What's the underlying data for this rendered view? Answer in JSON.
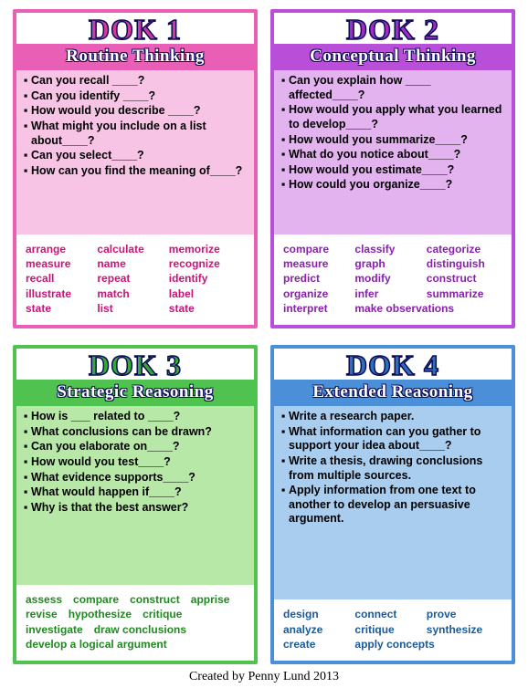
{
  "footer": "Created by Penny Lund 2013",
  "cards": [
    {
      "title": "DOK 1",
      "subtitle": "Routine Thinking",
      "border_color": "#e85fb5",
      "title_color": "#d13a9a",
      "band_color": "#e85fb5",
      "body_color": "#f7c4e6",
      "verb_color": "#c9147a",
      "questions": [
        "Can you recall ____?",
        "Can you identify ____?",
        "How would you describe ____?",
        "What might you include on a list about____?",
        "Can you select____?",
        "How can you find the meaning of____?"
      ],
      "verbs": [
        "arrange",
        "calculate",
        "memorize",
        "measure",
        "name",
        "recognize",
        "recall",
        "repeat",
        "identify",
        "illustrate",
        "match",
        "label",
        "state",
        "list",
        "state"
      ],
      "verb_layout": "cols3"
    },
    {
      "title": "DOK 2",
      "subtitle": "Conceptual Thinking",
      "border_color": "#b94ed8",
      "title_color": "#a22dc2",
      "band_color": "#b94ed8",
      "body_color": "#e3b3ef",
      "verb_color": "#8a1fb0",
      "questions": [
        "Can you explain how ____ affected____?",
        "How would you apply what you learned to develop____?",
        "How would you summarize____?",
        "What do you notice about____?",
        "How would you estimate____?",
        "How could you organize____?"
      ],
      "verbs": [
        "compare",
        "classify",
        "categorize",
        "measure",
        "graph",
        "distinguish",
        "predict",
        "modify",
        "construct",
        "organize",
        "infer",
        "summarize",
        "interpret",
        "make observations"
      ],
      "verb_layout": "cols3"
    },
    {
      "title": "DOK 3",
      "subtitle": "Strategic Reasoning",
      "border_color": "#4fc24f",
      "title_color": "#35a835",
      "band_color": "#4fc24f",
      "body_color": "#b8e8a8",
      "verb_color": "#1f8a1f",
      "questions": [
        "How is ___ related to ____?",
        "What conclusions can be drawn?",
        "Can you elaborate on____?",
        "How would you test____?",
        "What evidence supports____?",
        "What would happen if____?",
        "Why is that the best answer?"
      ],
      "verbs": [
        "assess",
        "compare",
        "construct",
        "apprise",
        "revise",
        "hypothesize",
        "critique",
        "investigate",
        "draw conclusions",
        "develop a logical argument"
      ],
      "verb_layout": "free"
    },
    {
      "title": "DOK 4",
      "subtitle": "Extended Reasoning",
      "border_color": "#4a8fd8",
      "title_color": "#2e6fb8",
      "band_color": "#4a8fd8",
      "body_color": "#a8cdef",
      "verb_color": "#1a5a9a",
      "questions": [
        "Write a research paper.",
        "What information can you gather to support your idea about____?",
        "Write a thesis, drawing conclusions from multiple sources.",
        "Apply information from one text to another to develop an persuasive argument."
      ],
      "verbs": [
        "design",
        "connect",
        "prove",
        "analyze",
        "critique",
        "synthesize",
        "create",
        "apply concepts"
      ],
      "verb_layout": "cols3"
    }
  ]
}
